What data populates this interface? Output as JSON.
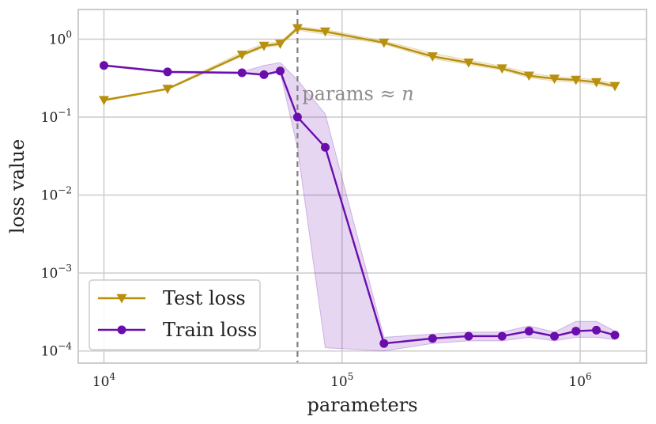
{
  "chart_data": {
    "type": "line",
    "xscale": "log",
    "yscale": "log",
    "xlabel": "parameters",
    "ylabel": "loss value",
    "xlim": [
      7800,
      1900000
    ],
    "ylim": [
      7e-05,
      2.4
    ],
    "xticks": [
      {
        "value": 10000,
        "base": "10",
        "exp": "4"
      },
      {
        "value": 100000,
        "base": "10",
        "exp": "5"
      },
      {
        "value": 1000000,
        "base": "10",
        "exp": "6"
      }
    ],
    "yticks": [
      {
        "value": 1,
        "base": "10",
        "exp": "0"
      },
      {
        "value": 0.1,
        "base": "10",
        "exp": "−1"
      },
      {
        "value": 0.01,
        "base": "10",
        "exp": "−2"
      },
      {
        "value": 0.001,
        "base": "10",
        "exp": "−3"
      },
      {
        "value": 0.0001,
        "base": "10",
        "exp": "−4"
      }
    ],
    "grid": true,
    "legend_position": "bottom-left",
    "vline": {
      "x": 65000,
      "style": "dashed",
      "color": "#808080"
    },
    "annotation": {
      "text_main": "params ≈ ",
      "text_var": "n",
      "x": 68000,
      "y": 0.2
    },
    "series": [
      {
        "name": "Test loss",
        "marker": "triangle-down",
        "color": "#b8900e",
        "x": [
          10000,
          18500,
          38000,
          47000,
          55000,
          65000,
          85000,
          150000,
          240000,
          340000,
          470000,
          610000,
          780000,
          960000,
          1170000,
          1400000
        ],
        "y": [
          0.165,
          0.23,
          0.63,
          0.82,
          0.87,
          1.38,
          1.25,
          0.9,
          0.6,
          0.5,
          0.42,
          0.34,
          0.31,
          0.3,
          0.28,
          0.25
        ],
        "y_low": [
          0.16,
          0.225,
          0.6,
          0.78,
          0.83,
          1.3,
          1.15,
          0.86,
          0.56,
          0.47,
          0.4,
          0.32,
          0.29,
          0.28,
          0.26,
          0.24
        ],
        "y_high": [
          0.17,
          0.235,
          0.68,
          0.88,
          0.92,
          1.45,
          1.33,
          0.95,
          0.66,
          0.54,
          0.45,
          0.37,
          0.33,
          0.32,
          0.3,
          0.27
        ]
      },
      {
        "name": "Train loss",
        "marker": "circle",
        "color": "#6a0dad",
        "x": [
          10000,
          18500,
          38000,
          47000,
          55000,
          65000,
          85000,
          150000,
          240000,
          340000,
          470000,
          610000,
          780000,
          960000,
          1170000,
          1400000
        ],
        "y": [
          0.46,
          0.38,
          0.37,
          0.35,
          0.39,
          0.1,
          0.041,
          0.000125,
          0.000145,
          0.000155,
          0.000155,
          0.00018,
          0.000155,
          0.00018,
          0.000185,
          0.00016
        ],
        "y_low": [
          0.45,
          0.37,
          0.36,
          0.34,
          0.38,
          0.04,
          0.00011,
          0.0001,
          0.000125,
          0.000135,
          0.000135,
          0.00015,
          0.000135,
          0.00015,
          0.00015,
          0.00014
        ],
        "y_high": [
          0.47,
          0.39,
          0.38,
          0.46,
          0.5,
          0.3,
          0.11,
          0.00015,
          0.000165,
          0.000175,
          0.000175,
          0.00021,
          0.000175,
          0.00024,
          0.00024,
          0.00018
        ]
      }
    ]
  }
}
